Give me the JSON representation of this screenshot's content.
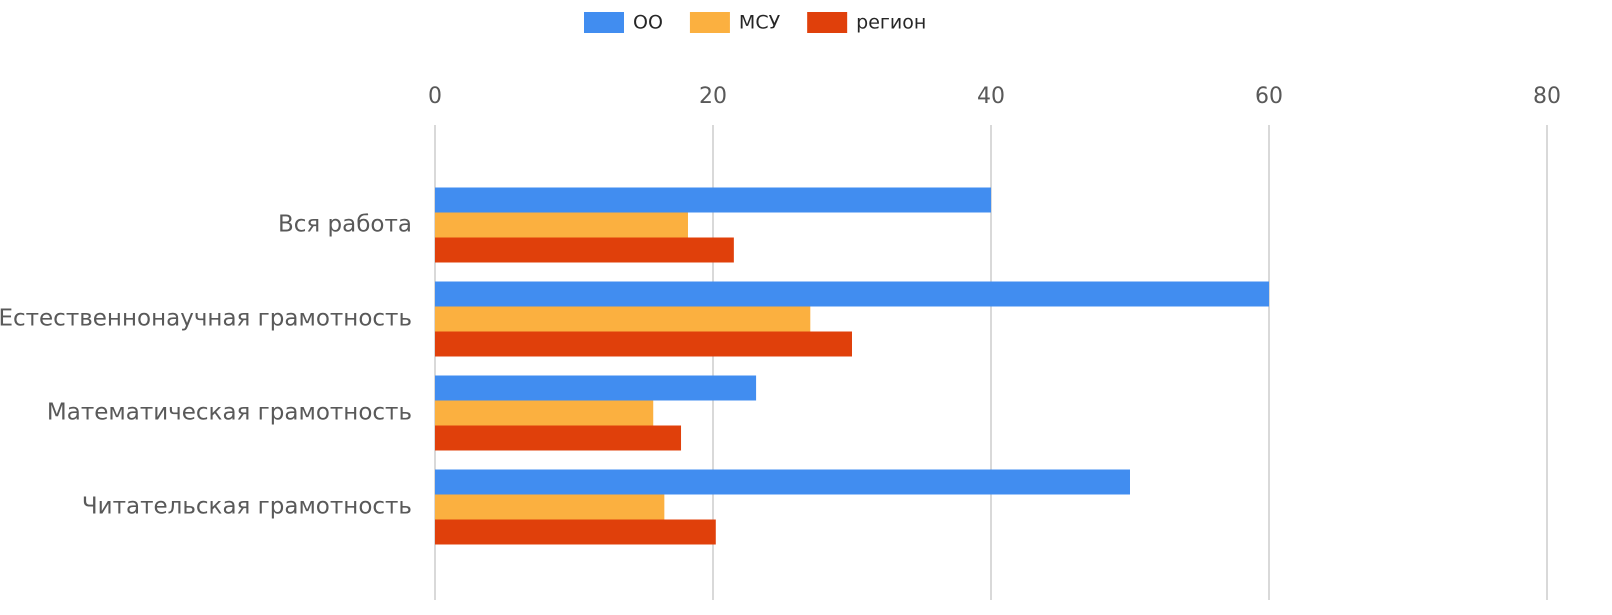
{
  "chart_data": {
    "type": "hbar",
    "categories": [
      "Вся работа",
      "Естественнонаучная грамотность",
      "Математическая грамотность",
      "Читательская грамотность"
    ],
    "series": [
      {
        "name": "ОО",
        "color": "#418df0",
        "values": [
          40,
          60,
          23.1,
          50
        ]
      },
      {
        "name": "МСУ",
        "color": "#fbb040",
        "values": [
          18.2,
          27,
          15.7,
          16.5
        ]
      },
      {
        "name": "регион",
        "color": "#e0400b",
        "values": [
          21.5,
          30,
          17.7,
          20.2
        ]
      }
    ],
    "xlim": [
      0,
      80
    ],
    "xticks": [
      0,
      20,
      40,
      60,
      80
    ],
    "grid": true,
    "legend": "top"
  }
}
